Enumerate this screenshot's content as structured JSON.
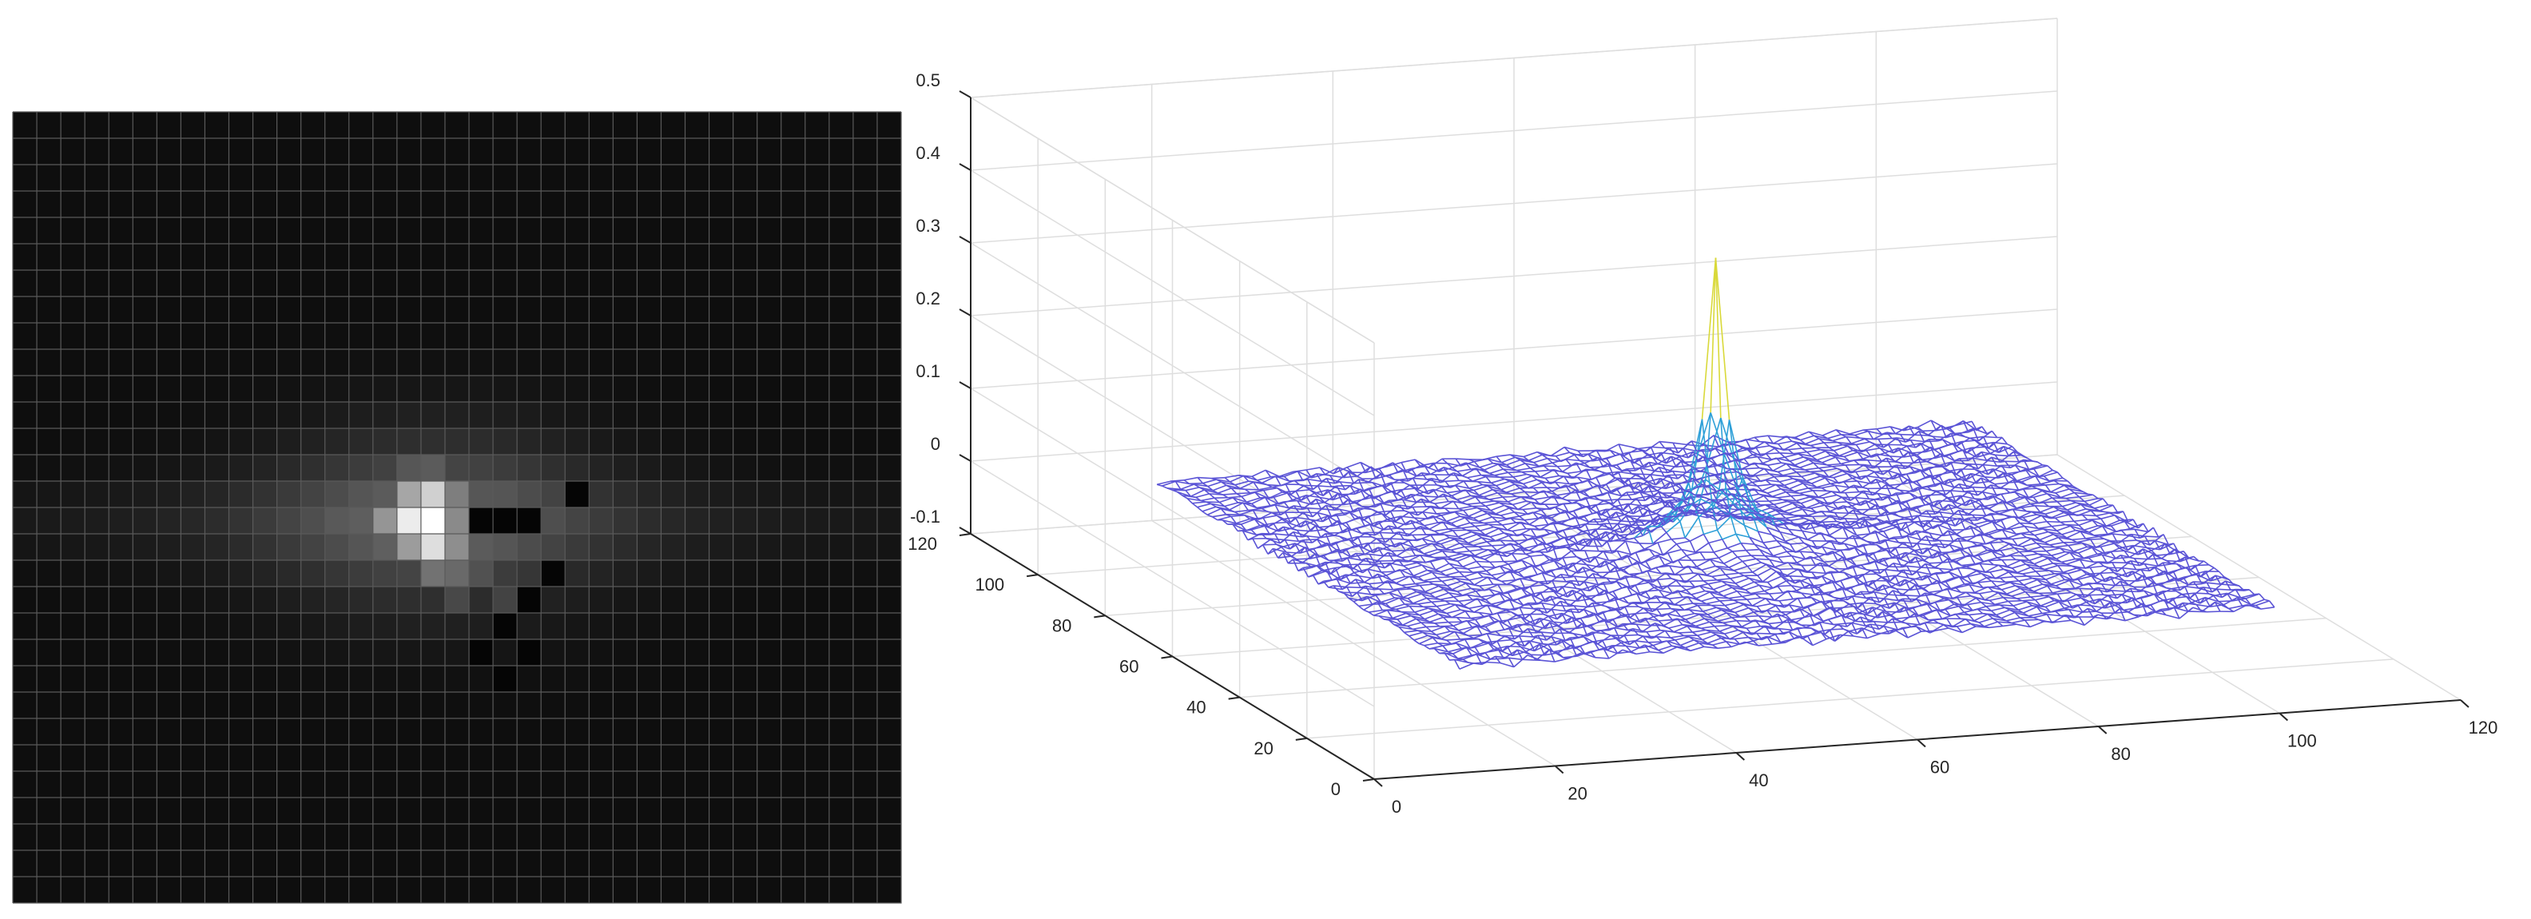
{
  "chart_data": [
    {
      "type": "heatmap",
      "colormap": "gray",
      "grid_lines": true,
      "grid_size": [
        30,
        37
      ],
      "peak": {
        "col": 17,
        "row": 15,
        "value": 1.0
      },
      "bright_cells": [
        {
          "col": 16,
          "row": 15,
          "value": 0.92
        },
        {
          "col": 17,
          "row": 14,
          "value": 0.8
        },
        {
          "col": 16,
          "row": 14,
          "value": 0.62
        },
        {
          "col": 17,
          "row": 16,
          "value": 0.86
        },
        {
          "col": 16,
          "row": 16,
          "value": 0.58
        },
        {
          "col": 15,
          "row": 15,
          "value": 0.55
        },
        {
          "col": 18,
          "row": 15,
          "value": 0.5
        },
        {
          "col": 18,
          "row": 14,
          "value": 0.45
        },
        {
          "col": 18,
          "row": 16,
          "value": 0.52
        },
        {
          "col": 17,
          "row": 17,
          "value": 0.4
        },
        {
          "col": 18,
          "row": 17,
          "value": 0.36
        },
        {
          "col": 15,
          "row": 14,
          "value": 0.3
        },
        {
          "col": 15,
          "row": 16,
          "value": 0.32
        },
        {
          "col": 16,
          "row": 13,
          "value": 0.28
        },
        {
          "col": 17,
          "row": 13,
          "value": 0.3
        },
        {
          "col": 19,
          "row": 14,
          "value": 0.28
        },
        {
          "col": 19,
          "row": 16,
          "value": 0.3
        },
        {
          "col": 19,
          "row": 17,
          "value": 0.26
        },
        {
          "col": 20,
          "row": 18,
          "value": 0.2
        },
        {
          "col": 18,
          "row": 18,
          "value": 0.22
        }
      ],
      "dark_cells": [
        {
          "col": 19,
          "row": 15
        },
        {
          "col": 20,
          "row": 15
        },
        {
          "col": 21,
          "row": 15
        },
        {
          "col": 23,
          "row": 14
        },
        {
          "col": 22,
          "row": 17
        },
        {
          "col": 21,
          "row": 18
        },
        {
          "col": 20,
          "row": 19
        },
        {
          "col": 19,
          "row": 20
        },
        {
          "col": 21,
          "row": 20
        },
        {
          "col": 20,
          "row": 21
        }
      ]
    },
    {
      "type": "mesh3d",
      "x_range": [
        0,
        120
      ],
      "y_range": [
        0,
        120
      ],
      "z_range": [
        -0.1,
        0.5
      ],
      "x_ticks": [
        "0",
        "20",
        "40",
        "60",
        "80",
        "100",
        "120"
      ],
      "y_ticks": [
        "0",
        "20",
        "40",
        "60",
        "80",
        "100",
        "120"
      ],
      "z_ticks": [
        "-0.1",
        "0",
        "0.1",
        "0.2",
        "0.3",
        "0.4",
        "0.5"
      ],
      "surface_extent": [
        15,
        105
      ],
      "peak": {
        "x": 60,
        "y": 60,
        "z": 0.34
      },
      "secondary_peaks": [
        {
          "x": 60,
          "y": 61.5,
          "z": 0.24
        },
        {
          "x": 61.5,
          "y": 60,
          "z": 0.1
        }
      ],
      "colors": {
        "low": "#5b54d6",
        "mid": "#2fa0d8",
        "high": "#d9d93a"
      },
      "grid": true
    }
  ]
}
